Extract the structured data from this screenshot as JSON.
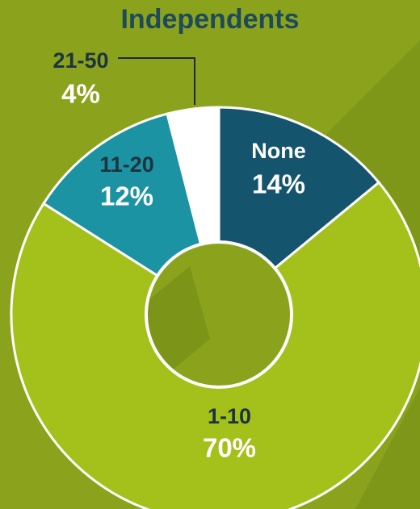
{
  "chart_data": {
    "type": "donut",
    "title": "Independents",
    "categories": [
      "None",
      "1-10",
      "11-20",
      "21-50"
    ],
    "values": [
      14,
      70,
      12,
      4
    ],
    "value_labels": [
      "14%",
      "70%",
      "12%",
      "4%"
    ],
    "colors": [
      "#15546d",
      "#a4c01b",
      "#1c93a2",
      "#ffffff"
    ]
  }
}
